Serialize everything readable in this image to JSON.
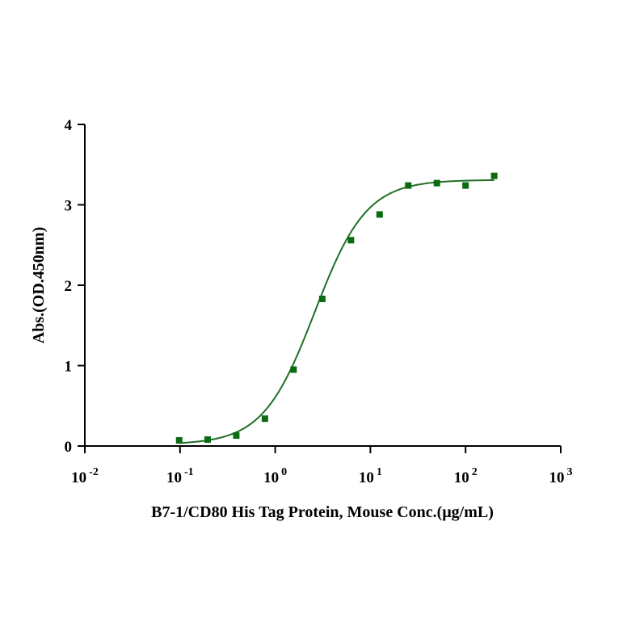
{
  "chart_data": {
    "type": "scatter",
    "xlabel": "B7-1/CD80 His Tag Protein, Mouse  Conc.(μg/mL)",
    "ylabel": "Abs.(OD.450nm)",
    "x_scale": "log10",
    "xlim": [
      0.01,
      1000
    ],
    "ylim": [
      0,
      4
    ],
    "x_ticks": [
      {
        "base": "10",
        "exp": "-2"
      },
      {
        "base": "10",
        "exp": "-1"
      },
      {
        "base": "10",
        "exp": "0"
      },
      {
        "base": "10",
        "exp": "1"
      },
      {
        "base": "10",
        "exp": "2"
      },
      {
        "base": "10",
        "exp": "3"
      }
    ],
    "y_ticks": [
      "0",
      "1",
      "2",
      "3",
      "4"
    ],
    "grid": false,
    "marker_color": "#0a6b12",
    "curve_color": "#1f6f25",
    "series": [
      {
        "x": [
          0.098,
          0.195,
          0.39,
          0.78,
          1.56,
          3.125,
          6.25,
          12.5,
          25,
          50,
          100,
          200
        ],
        "y": [
          0.07,
          0.08,
          0.13,
          0.34,
          0.95,
          1.83,
          2.56,
          2.88,
          3.24,
          3.27,
          3.24,
          3.36
        ]
      }
    ],
    "fit": {
      "model": "4PL",
      "bottom": 0.02,
      "top": 3.31,
      "ec50": 2.6,
      "hill": 1.6
    }
  }
}
